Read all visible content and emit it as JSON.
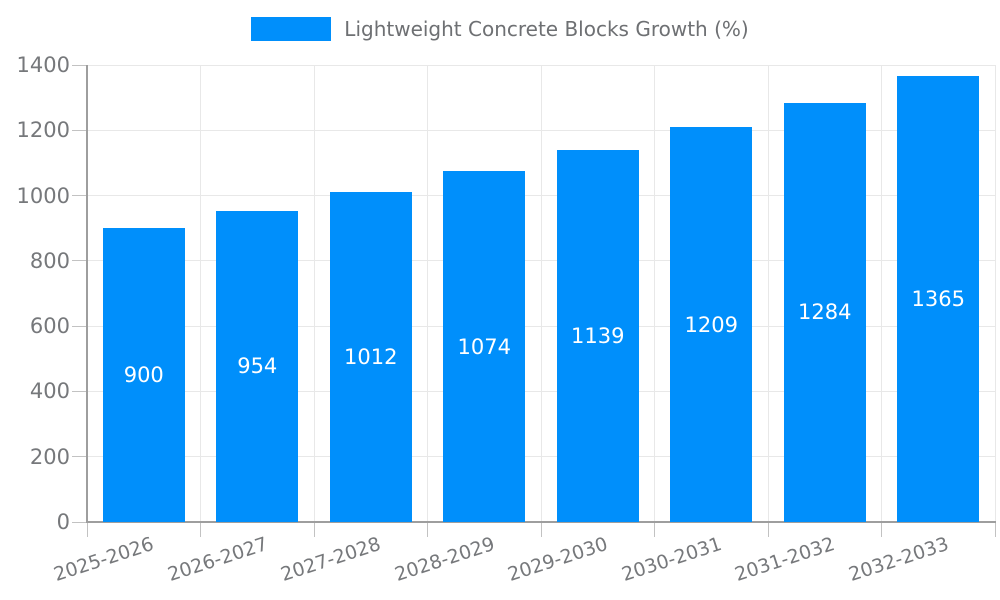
{
  "legend": {
    "items": [
      {
        "label": "Lightweight Concrete Blocks Growth (%)",
        "color": "#008FFB"
      }
    ]
  },
  "chart_data": {
    "type": "bar",
    "title": "",
    "categories": [
      "2025-2026",
      "2026-2027",
      "2027-2028",
      "2028-2029",
      "2029-2030",
      "2030-2031",
      "2031-2032",
      "2032-2033"
    ],
    "series": [
      {
        "name": "Lightweight Concrete Blocks Growth (%)",
        "color": "#008FFB",
        "values": [
          900,
          954,
          1012,
          1074,
          1139,
          1209,
          1284,
          1365
        ]
      }
    ],
    "xlabel": "",
    "ylabel": "",
    "ylim": [
      0,
      1400
    ],
    "yticks": [
      0,
      200,
      400,
      600,
      800,
      1000,
      1200,
      1400
    ],
    "grid": true,
    "legend_position": "top-center",
    "value_labels": {
      "position": "inside-middle",
      "color": "#ffffff"
    },
    "colors": {
      "bar": "#008FFB",
      "grid": "#e8e8e8",
      "axis_line": "#9e9e9e",
      "tick": "#c2c2c2",
      "axis_label": "#76787b",
      "legend_text": "#6e7073"
    }
  }
}
